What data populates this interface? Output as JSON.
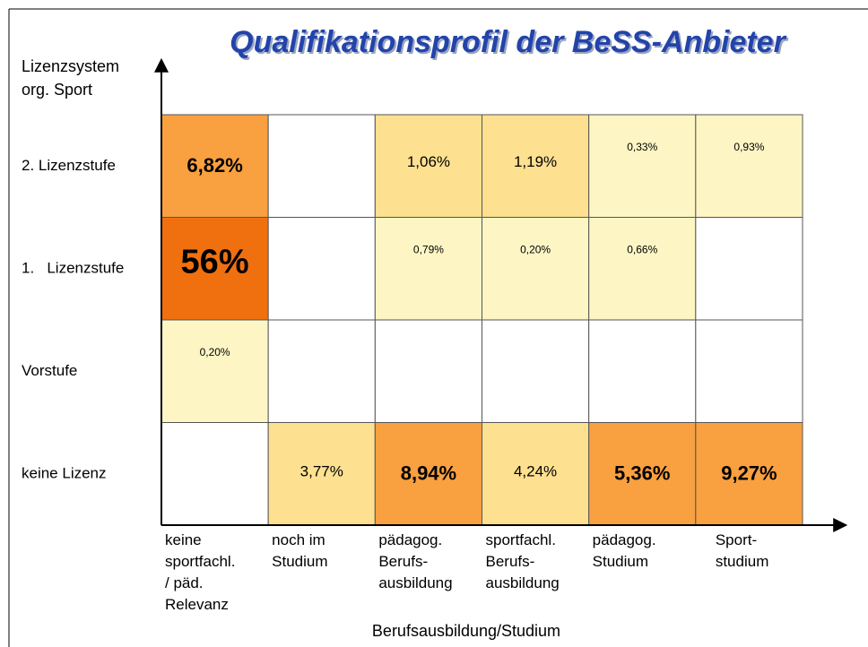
{
  "chart_data": {
    "type": "heatmap",
    "title": "Qualifikationsprofil der BeSS-Anbieter",
    "y_label": [
      "Lizenzsystem",
      "org. Sport"
    ],
    "x_label": "Berufsausbildung/Studium",
    "rows": [
      "2. Lizenzstufe",
      "1.   Lizenzstufe",
      "Vorstufe",
      "keine Lizenz"
    ],
    "categories": [
      [
        "keine",
        "sportfachl.",
        "/ päd.",
        "Relevanz"
      ],
      [
        "noch im",
        "Studium"
      ],
      [
        "pädagog.",
        "Berufs-",
        "ausbildung"
      ],
      [
        "sportfachl.",
        "Berufs-",
        "ausbildung"
      ],
      [
        "pädagog.",
        "Studium"
      ],
      [
        "Sport-",
        "studium"
      ]
    ],
    "values": [
      [
        6.82,
        null,
        1.06,
        1.19,
        0.33,
        0.93
      ],
      [
        56,
        null,
        0.79,
        0.2,
        0.66,
        null
      ],
      [
        0.2,
        null,
        null,
        null,
        null,
        null
      ],
      [
        null,
        3.77,
        8.94,
        4.24,
        5.36,
        9.27
      ]
    ],
    "value_labels": [
      [
        "6,82%",
        null,
        "1,06%",
        "1,19%",
        "0,33%",
        "0,93%"
      ],
      [
        "56%",
        null,
        "0,79%",
        "0,20%",
        "0,66%",
        null
      ],
      [
        "0,20%",
        null,
        null,
        null,
        null,
        null
      ],
      [
        null,
        "3,77%",
        "8,94%",
        "4,24%",
        "5,36%",
        "9,27%"
      ]
    ],
    "colors": [
      [
        "#f9a040",
        null,
        "#fde090",
        "#fde090",
        "#fdf6c4",
        "#fdf6c4"
      ],
      [
        "#f07010",
        null,
        "#fdf6c4",
        "#fdf6c4",
        "#fdf6c4",
        null
      ],
      [
        "#fdf6c4",
        null,
        null,
        null,
        null,
        null
      ],
      [
        null,
        "#fde090",
        "#f9a040",
        "#fde090",
        "#f9a040",
        "#f9a040"
      ]
    ]
  }
}
